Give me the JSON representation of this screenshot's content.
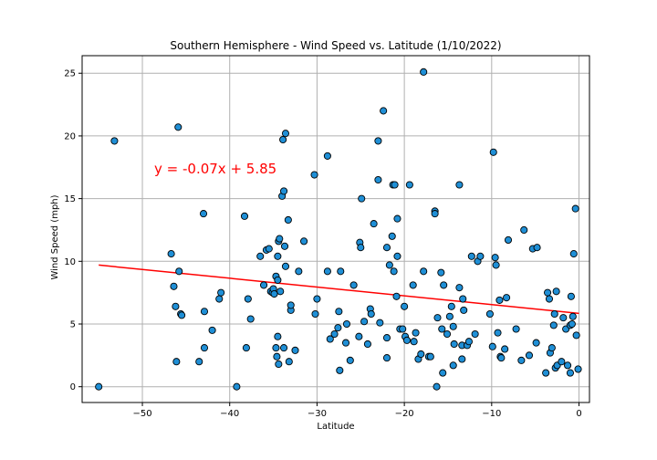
{
  "chart_data": {
    "type": "scatter",
    "title": "Southern Hemisphere - Wind Speed vs. Latitude (1/10/2022)",
    "xlabel": "Latitude",
    "ylabel": "Wind Speed (mph)",
    "xlim": [
      -56.9,
      1.2
    ],
    "ylim": [
      -1.26,
      26.4
    ],
    "xticks": [
      -50,
      -40,
      -30,
      -20,
      -10,
      0
    ],
    "yticks": [
      0,
      5,
      10,
      15,
      20,
      25
    ],
    "grid": true,
    "marker_color": "#1f8fd6",
    "marker_edge_color": "#000000",
    "regression": {
      "equation": "y = -0.07x + 5.85",
      "x_range": [
        -55,
        0
      ],
      "color": "#ff0000"
    },
    "points": [
      [
        -55.0,
        0.0
      ],
      [
        -53.2,
        19.6
      ],
      [
        -46.7,
        10.6
      ],
      [
        -46.4,
        8.0
      ],
      [
        -46.2,
        6.4
      ],
      [
        -46.1,
        2.0
      ],
      [
        -45.9,
        20.7
      ],
      [
        -45.8,
        9.2
      ],
      [
        -45.6,
        5.8
      ],
      [
        -45.5,
        5.7
      ],
      [
        -43.5,
        2.0
      ],
      [
        -43.0,
        13.8
      ],
      [
        -42.9,
        6.0
      ],
      [
        -42.9,
        3.1
      ],
      [
        -42.0,
        4.5
      ],
      [
        -41.2,
        7.0
      ],
      [
        -41.0,
        7.5
      ],
      [
        -39.2,
        0.0
      ],
      [
        -38.3,
        13.6
      ],
      [
        -38.1,
        3.1
      ],
      [
        -37.9,
        7.0
      ],
      [
        -37.6,
        5.4
      ],
      [
        -36.5,
        10.4
      ],
      [
        -36.1,
        8.1
      ],
      [
        -35.8,
        10.9
      ],
      [
        -35.5,
        11.0
      ],
      [
        -35.3,
        7.6
      ],
      [
        -35.1,
        7.5
      ],
      [
        -35.0,
        7.8
      ],
      [
        -34.9,
        7.4
      ],
      [
        -34.7,
        8.8
      ],
      [
        -34.7,
        3.1
      ],
      [
        -34.6,
        2.4
      ],
      [
        -34.5,
        8.5
      ],
      [
        -34.5,
        10.4
      ],
      [
        -34.5,
        4.0
      ],
      [
        -34.4,
        11.6
      ],
      [
        -34.4,
        1.8
      ],
      [
        -34.3,
        11.8
      ],
      [
        -34.2,
        7.6
      ],
      [
        -34.0,
        15.2
      ],
      [
        -33.9,
        19.7
      ],
      [
        -33.8,
        15.6
      ],
      [
        -33.8,
        3.1
      ],
      [
        -33.7,
        11.2
      ],
      [
        -33.6,
        20.2
      ],
      [
        -33.6,
        9.6
      ],
      [
        -33.3,
        13.3
      ],
      [
        -33.2,
        2.0
      ],
      [
        -33.0,
        6.1
      ],
      [
        -33.0,
        6.5
      ],
      [
        -32.5,
        2.9
      ],
      [
        -32.1,
        9.2
      ],
      [
        -31.5,
        11.6
      ],
      [
        -30.3,
        16.9
      ],
      [
        -30.2,
        5.8
      ],
      [
        -30.0,
        7.0
      ],
      [
        -28.8,
        18.4
      ],
      [
        -28.8,
        9.2
      ],
      [
        -28.5,
        3.8
      ],
      [
        -28.0,
        4.2
      ],
      [
        -27.6,
        4.7
      ],
      [
        -27.5,
        6.0
      ],
      [
        -27.3,
        9.2
      ],
      [
        -27.4,
        1.3
      ],
      [
        -26.7,
        3.5
      ],
      [
        -26.6,
        5.0
      ],
      [
        -26.2,
        2.1
      ],
      [
        -25.8,
        8.1
      ],
      [
        -25.2,
        4.0
      ],
      [
        -25.1,
        11.5
      ],
      [
        -25.0,
        11.1
      ],
      [
        -24.9,
        15.0
      ],
      [
        -24.6,
        5.2
      ],
      [
        -24.2,
        3.4
      ],
      [
        -23.9,
        6.2
      ],
      [
        -23.8,
        5.8
      ],
      [
        -23.5,
        13.0
      ],
      [
        -23.0,
        16.5
      ],
      [
        -23.0,
        19.6
      ],
      [
        -22.8,
        5.1
      ],
      [
        -22.4,
        22.0
      ],
      [
        -22.0,
        2.3
      ],
      [
        -22.0,
        3.9
      ],
      [
        -22.0,
        11.1
      ],
      [
        -21.7,
        9.7
      ],
      [
        -21.4,
        12.0
      ],
      [
        -21.3,
        16.1
      ],
      [
        -21.2,
        9.2
      ],
      [
        -21.1,
        16.1
      ],
      [
        -20.9,
        7.2
      ],
      [
        -20.8,
        10.4
      ],
      [
        -20.8,
        13.4
      ],
      [
        -20.5,
        4.6
      ],
      [
        -20.2,
        4.6
      ],
      [
        -20.0,
        6.4
      ],
      [
        -19.9,
        4.0
      ],
      [
        -19.7,
        3.7
      ],
      [
        -19.4,
        16.1
      ],
      [
        -19.0,
        8.1
      ],
      [
        -18.9,
        3.6
      ],
      [
        -18.7,
        4.3
      ],
      [
        -18.4,
        2.2
      ],
      [
        -18.1,
        2.6
      ],
      [
        -17.8,
        25.1
      ],
      [
        -17.8,
        9.2
      ],
      [
        -17.2,
        2.4
      ],
      [
        -17.0,
        2.4
      ],
      [
        -16.5,
        14.0
      ],
      [
        -16.5,
        13.8
      ],
      [
        -16.3,
        0.0
      ],
      [
        -16.2,
        5.5
      ],
      [
        -15.8,
        9.1
      ],
      [
        -15.7,
        4.6
      ],
      [
        -15.6,
        1.1
      ],
      [
        -15.5,
        8.1
      ],
      [
        -15.1,
        4.2
      ],
      [
        -14.8,
        5.6
      ],
      [
        -14.6,
        6.4
      ],
      [
        -14.4,
        1.7
      ],
      [
        -14.4,
        4.8
      ],
      [
        -14.3,
        3.4
      ],
      [
        -13.7,
        16.1
      ],
      [
        -13.7,
        7.9
      ],
      [
        -13.4,
        3.3
      ],
      [
        -13.4,
        2.2
      ],
      [
        -13.3,
        7.0
      ],
      [
        -13.2,
        6.1
      ],
      [
        -12.8,
        3.3
      ],
      [
        -12.6,
        3.6
      ],
      [
        -12.3,
        10.4
      ],
      [
        -11.9,
        4.2
      ],
      [
        -11.6,
        10.0
      ],
      [
        -11.3,
        10.4
      ],
      [
        -10.2,
        5.8
      ],
      [
        -9.9,
        3.2
      ],
      [
        -9.8,
        18.7
      ],
      [
        -9.6,
        10.3
      ],
      [
        -9.5,
        9.7
      ],
      [
        -9.3,
        4.3
      ],
      [
        -9.1,
        6.9
      ],
      [
        -9.0,
        2.4
      ],
      [
        -8.9,
        2.3
      ],
      [
        -8.5,
        3.0
      ],
      [
        -8.3,
        7.1
      ],
      [
        -8.1,
        11.7
      ],
      [
        -7.2,
        4.6
      ],
      [
        -6.6,
        2.1
      ],
      [
        -6.3,
        12.5
      ],
      [
        -5.7,
        2.5
      ],
      [
        -5.3,
        11.0
      ],
      [
        -4.9,
        3.5
      ],
      [
        -4.8,
        11.1
      ],
      [
        -3.8,
        1.1
      ],
      [
        -3.6,
        7.5
      ],
      [
        -3.4,
        7.0
      ],
      [
        -3.3,
        2.7
      ],
      [
        -3.1,
        3.1
      ],
      [
        -2.9,
        4.9
      ],
      [
        -2.8,
        5.8
      ],
      [
        -2.7,
        1.5
      ],
      [
        -2.6,
        7.6
      ],
      [
        -2.5,
        1.7
      ],
      [
        -2.0,
        2.0
      ],
      [
        -1.8,
        5.5
      ],
      [
        -1.5,
        4.6
      ],
      [
        -1.3,
        1.7
      ],
      [
        -1.0,
        1.1
      ],
      [
        -1.0,
        4.9
      ],
      [
        -0.9,
        7.2
      ],
      [
        -0.8,
        5.0
      ],
      [
        -0.7,
        5.6
      ],
      [
        -0.6,
        10.6
      ],
      [
        -0.4,
        14.2
      ],
      [
        -0.3,
        4.1
      ],
      [
        -0.1,
        1.4
      ]
    ]
  }
}
